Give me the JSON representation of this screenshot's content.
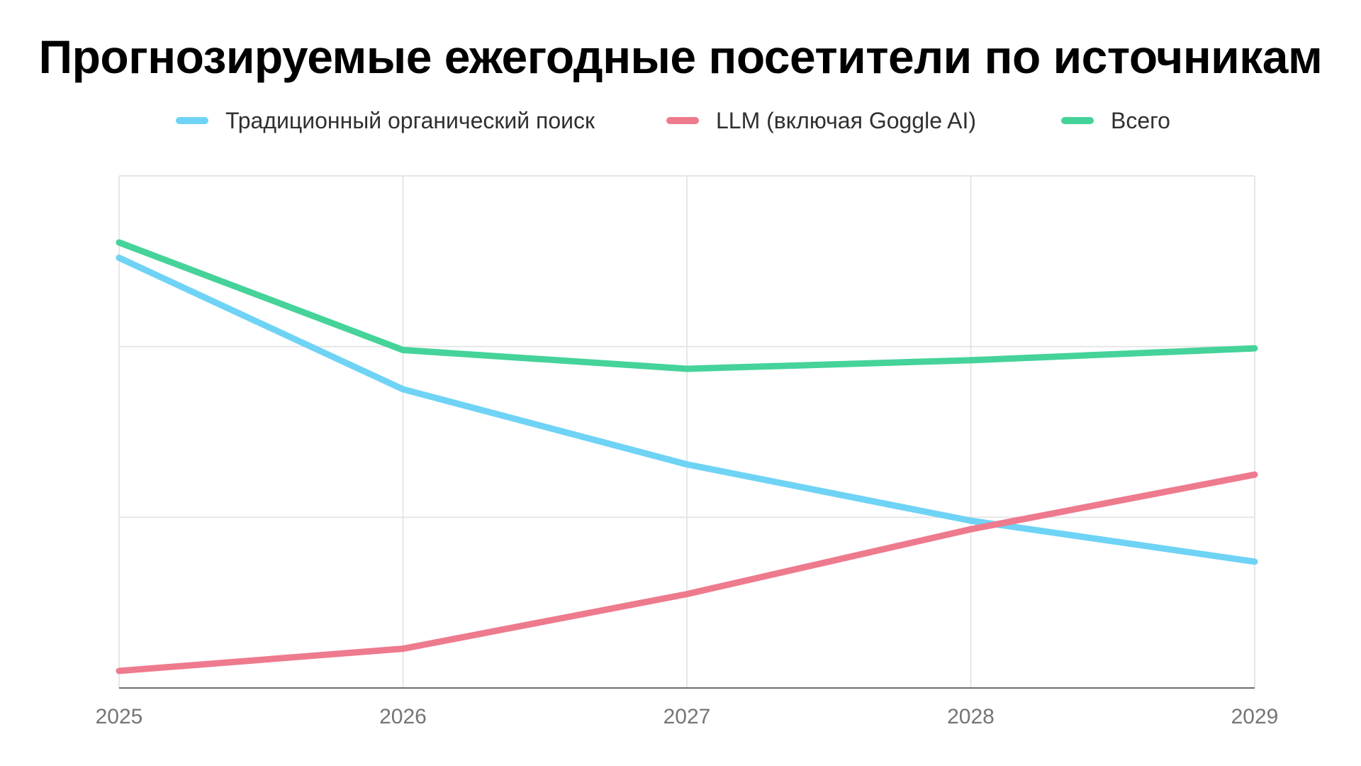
{
  "chart_data": {
    "type": "line",
    "title": "Прогнозируемые ежегодные посетители по источникам",
    "xlabel": "",
    "ylabel": "",
    "x": [
      "2025",
      "2026",
      "2027",
      "2028",
      "2029"
    ],
    "ylim": [
      0,
      3
    ],
    "y_ticks_labeled": false,
    "grid": true,
    "legend_position": "top",
    "series": [
      {
        "name": "Традиционный органический поиск",
        "color": "#6fd3f5",
        "values": [
          2.52,
          1.75,
          1.31,
          0.98,
          0.74
        ]
      },
      {
        "name": "LLM (включая Goggle AI)",
        "color": "#ee7a8e",
        "values": [
          0.1,
          0.23,
          0.55,
          0.93,
          1.25
        ]
      },
      {
        "name": "Всего",
        "color": "#45d39a",
        "values": [
          2.61,
          1.98,
          1.87,
          1.92,
          1.99
        ]
      }
    ]
  }
}
